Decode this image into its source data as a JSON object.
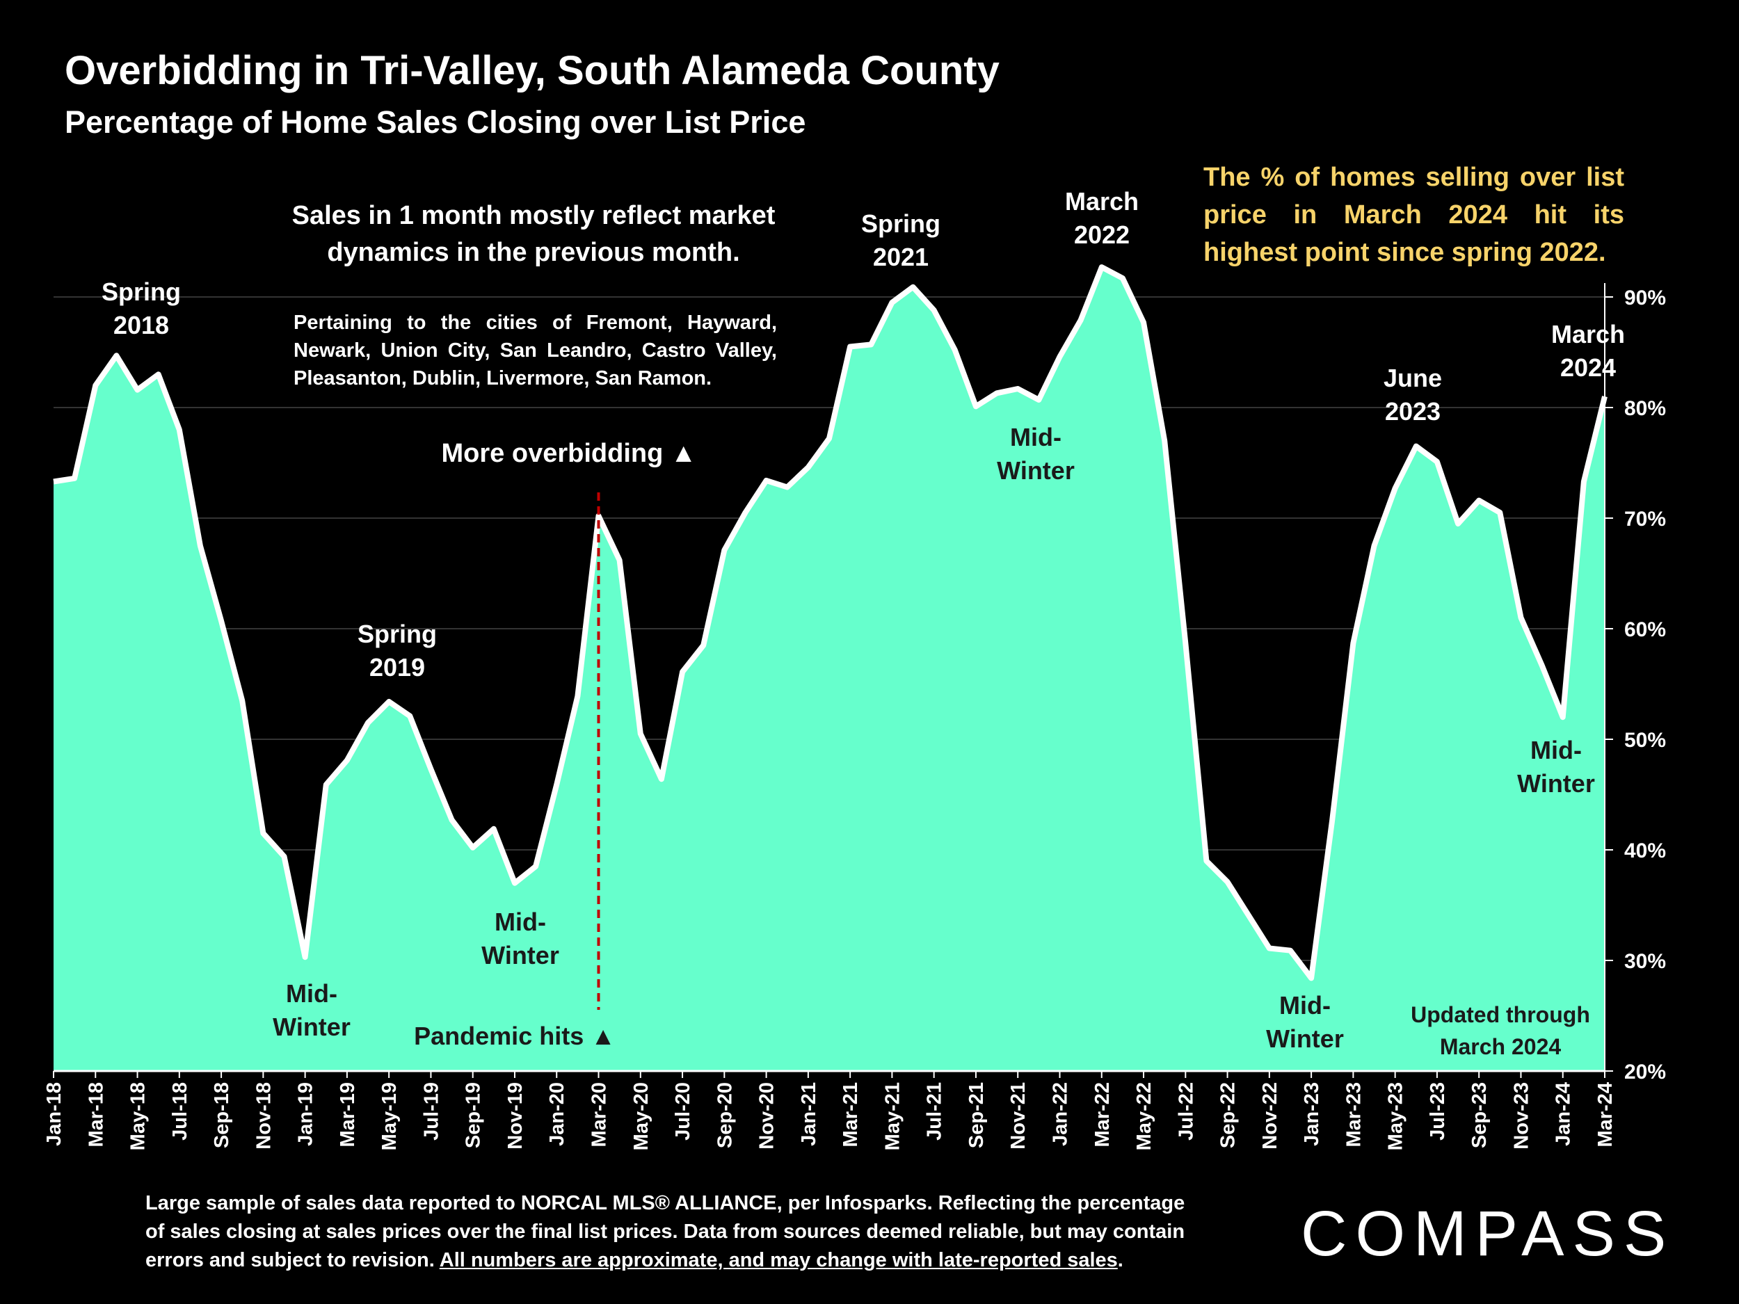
{
  "title": "Overbidding in Tri-Valley, South Alameda County",
  "subtitle": "Percentage of Home Sales Closing over List Price",
  "annotations": {
    "spring2018": [
      "Spring",
      "2018"
    ],
    "spring2019": [
      "Spring",
      "2019"
    ],
    "spring2021": [
      "Spring",
      "2021"
    ],
    "march2022": [
      "March",
      "2022"
    ],
    "june2023": [
      "June",
      "2023"
    ],
    "march2024": [
      "March",
      "2024"
    ],
    "midwinter1": [
      "Mid-",
      "Winter"
    ],
    "midwinter2": [
      "Mid-",
      "Winter"
    ],
    "midwinter3": [
      "Mid-",
      "Winter"
    ],
    "midwinter4": [
      "Mid-",
      "Winter"
    ],
    "midwinter5": [
      "Mid-",
      "Winter"
    ],
    "sales_note": [
      "Sales in 1 month mostly reflect market",
      "dynamics in the previous month."
    ],
    "cities": "Pertaining to the cities of Fremont, Hayward, Newark, Union City, San Leandro, Castro Valley, Pleasanton, Dublin, Livermore, San Ramon.",
    "more_overbidding": "More overbidding ▲",
    "pandemic": "Pandemic hits ▲",
    "highlight": "The % of homes selling over list price in March 2024 hit its highest point since spring 2022.",
    "updated": [
      "Updated through",
      "March 2024"
    ]
  },
  "footer": {
    "line1": "Large sample of sales data reported to NORCAL MLS® ALLIANCE, per Infosparks. Reflecting the percentage",
    "line2": "of sales closing at sales prices over the final list prices. Data from sources deemed reliable, but may contain",
    "line3a": "errors and subject to revision. ",
    "line3b": "All numbers are approximate, and may change with late-reported sales",
    "line3c": "."
  },
  "logo": "COMPASS",
  "colors": {
    "fill": "#66ffcc",
    "line": "#ffffff",
    "pandemic": "#c00000",
    "highlight": "#f7d36a"
  },
  "chart_data": {
    "type": "area",
    "title": "Overbidding in Tri-Valley, South Alameda County",
    "ylabel": "Percentage of Home Sales Closing over List Price",
    "ylim": [
      20,
      90
    ],
    "yticks": [
      "20%",
      "30%",
      "40%",
      "50%",
      "60%",
      "70%",
      "80%",
      "90%"
    ],
    "grid": true,
    "x": [
      "Jan-18",
      "Feb-18",
      "Mar-18",
      "Apr-18",
      "May-18",
      "Jun-18",
      "Jul-18",
      "Aug-18",
      "Sep-18",
      "Oct-18",
      "Nov-18",
      "Dec-18",
      "Jan-19",
      "Feb-19",
      "Mar-19",
      "Apr-19",
      "May-19",
      "Jun-19",
      "Jul-19",
      "Aug-19",
      "Sep-19",
      "Oct-19",
      "Nov-19",
      "Dec-19",
      "Jan-20",
      "Feb-20",
      "Mar-20",
      "Apr-20",
      "May-20",
      "Jun-20",
      "Jul-20",
      "Aug-20",
      "Sep-20",
      "Oct-20",
      "Nov-20",
      "Dec-20",
      "Jan-21",
      "Feb-21",
      "Mar-21",
      "Apr-21",
      "May-21",
      "Jun-21",
      "Jul-21",
      "Aug-21",
      "Sep-21",
      "Oct-21",
      "Nov-21",
      "Dec-21",
      "Jan-22",
      "Feb-22",
      "Mar-22",
      "Apr-22",
      "May-22",
      "Jun-22",
      "Jul-22",
      "Aug-22",
      "Sep-22",
      "Oct-22",
      "Nov-22",
      "Dec-22",
      "Jan-23",
      "Feb-23",
      "Mar-23",
      "Apr-23",
      "May-23",
      "Jun-23",
      "Jul-23",
      "Aug-23",
      "Sep-23",
      "Oct-23",
      "Nov-23",
      "Dec-23",
      "Jan-24",
      "Feb-24",
      "Mar-24"
    ],
    "values": [
      73.3,
      73.6,
      82.0,
      84.7,
      81.6,
      83.0,
      78.0,
      67.5,
      60.7,
      53.5,
      41.5,
      39.4,
      30.3,
      45.9,
      48.1,
      51.5,
      53.4,
      52.1,
      47.3,
      42.7,
      40.2,
      41.9,
      37.0,
      38.5,
      45.9,
      53.9,
      70.2,
      66.2,
      50.5,
      46.4,
      56.1,
      58.5,
      67.1,
      70.5,
      73.4,
      72.8,
      74.6,
      77.2,
      85.5,
      85.7,
      89.5,
      90.9,
      88.8,
      85.2,
      80.1,
      81.3,
      81.7,
      80.7,
      84.6,
      87.9,
      92.7,
      91.7,
      87.7,
      77.0,
      58.7,
      39.0,
      37.1,
      34.1,
      31.1,
      30.9,
      28.4,
      42.7,
      58.7,
      67.5,
      72.7,
      76.5,
      75.1,
      69.5,
      71.6,
      70.5,
      61.0,
      56.7,
      52.0,
      73.3,
      81.0
    ],
    "xtick_every": 2,
    "pandemic_marker": "Mar-20"
  }
}
